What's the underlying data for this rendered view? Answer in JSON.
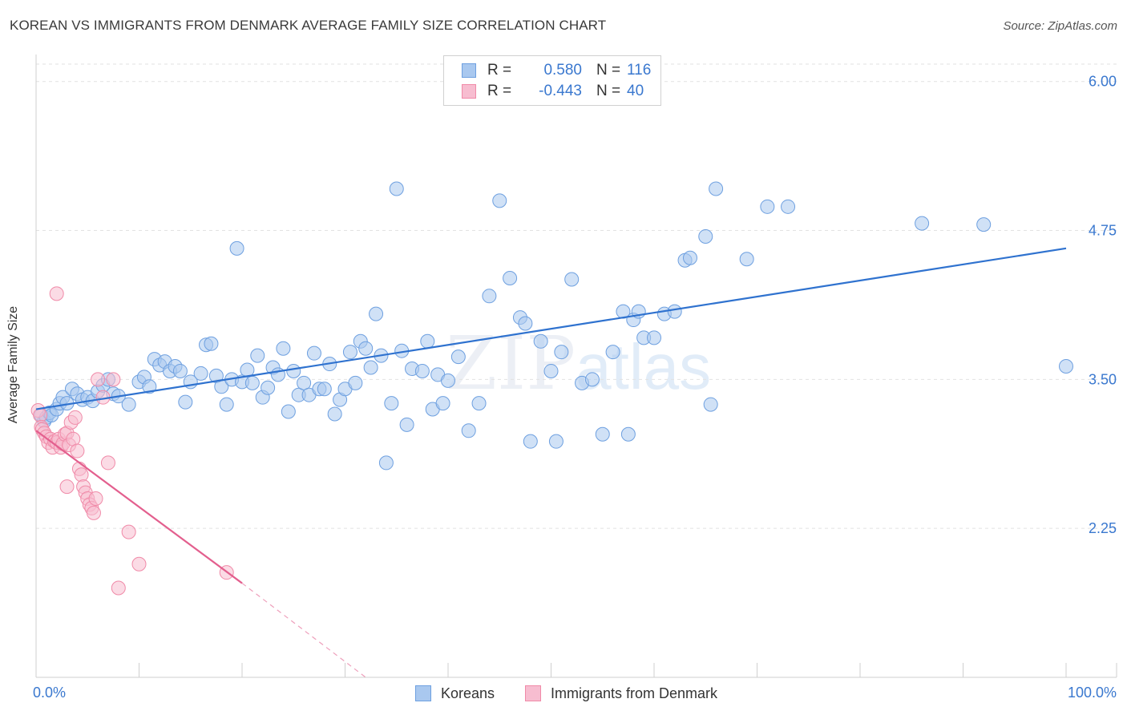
{
  "title": "KOREAN VS IMMIGRANTS FROM DENMARK AVERAGE FAMILY SIZE CORRELATION CHART",
  "source": "Source: ZipAtlas.com",
  "watermark": {
    "zip": "ZIP",
    "atlas": "atlas"
  },
  "legend": {
    "rows": [
      {
        "r_label": "R =",
        "r_value": "0.580",
        "n_label": "N =",
        "n_value": "116"
      },
      {
        "r_label": "R =",
        "r_value": "-0.443",
        "n_label": "N =",
        "n_value": "40"
      }
    ]
  },
  "chart_data": {
    "type": "scatter",
    "title": "KOREAN VS IMMIGRANTS FROM DENMARK AVERAGE FAMILY SIZE CORRELATION CHART",
    "xlabel": "",
    "ylabel": "Average Family Size",
    "xlim": [
      0,
      100
    ],
    "ylim": [
      1.0,
      6.2
    ],
    "x_tick_labels": [
      "0.0%",
      "100.0%"
    ],
    "y_ticks": [
      2.25,
      3.5,
      4.75,
      6.0
    ],
    "y_tick_labels": [
      "2.25",
      "3.50",
      "4.75",
      "6.00"
    ],
    "grid": "horizontal dashed",
    "legend_position": "top-center",
    "series": [
      {
        "name": "Koreans",
        "color": "#6ea0e0",
        "fill": "#a9c8ef",
        "trend": {
          "x": [
            0,
            100
          ],
          "y": [
            3.25,
            4.6
          ],
          "style": "solid",
          "color": "#2f72cf"
        },
        "points": [
          [
            0.5,
            3.2
          ],
          [
            0.8,
            3.15
          ],
          [
            1.0,
            3.18
          ],
          [
            1.3,
            3.22
          ],
          [
            1.5,
            3.2
          ],
          [
            2.0,
            3.25
          ],
          [
            2.3,
            3.3
          ],
          [
            2.6,
            3.35
          ],
          [
            3.0,
            3.3
          ],
          [
            3.5,
            3.42
          ],
          [
            4.0,
            3.38
          ],
          [
            4.5,
            3.33
          ],
          [
            5.0,
            3.35
          ],
          [
            5.5,
            3.32
          ],
          [
            6.0,
            3.4
          ],
          [
            6.5,
            3.45
          ],
          [
            7.0,
            3.5
          ],
          [
            7.5,
            3.38
          ],
          [
            8.0,
            3.36
          ],
          [
            9.0,
            3.29
          ],
          [
            10.0,
            3.48
          ],
          [
            10.5,
            3.52
          ],
          [
            11.0,
            3.44
          ],
          [
            11.5,
            3.67
          ],
          [
            12.0,
            3.62
          ],
          [
            12.5,
            3.65
          ],
          [
            13.0,
            3.57
          ],
          [
            13.5,
            3.61
          ],
          [
            14.0,
            3.57
          ],
          [
            14.5,
            3.31
          ],
          [
            15.0,
            3.48
          ],
          [
            16.0,
            3.55
          ],
          [
            16.5,
            3.79
          ],
          [
            17.0,
            3.8
          ],
          [
            17.5,
            3.53
          ],
          [
            18.0,
            3.44
          ],
          [
            18.5,
            3.29
          ],
          [
            19.0,
            3.5
          ],
          [
            19.5,
            4.6
          ],
          [
            20.0,
            3.48
          ],
          [
            20.5,
            3.58
          ],
          [
            21.0,
            3.47
          ],
          [
            21.5,
            3.7
          ],
          [
            22.0,
            3.35
          ],
          [
            22.5,
            3.43
          ],
          [
            23.0,
            3.6
          ],
          [
            23.5,
            3.54
          ],
          [
            24.0,
            3.76
          ],
          [
            24.5,
            3.23
          ],
          [
            25.0,
            3.57
          ],
          [
            25.5,
            3.37
          ],
          [
            26.0,
            3.47
          ],
          [
            26.5,
            3.37
          ],
          [
            27.0,
            3.72
          ],
          [
            27.5,
            3.42
          ],
          [
            28.0,
            3.42
          ],
          [
            28.5,
            3.63
          ],
          [
            29.0,
            3.21
          ],
          [
            29.5,
            3.33
          ],
          [
            30.0,
            3.42
          ],
          [
            30.5,
            3.73
          ],
          [
            31.0,
            3.47
          ],
          [
            31.5,
            3.82
          ],
          [
            32.0,
            3.76
          ],
          [
            32.5,
            3.6
          ],
          [
            33.0,
            4.05
          ],
          [
            33.5,
            3.7
          ],
          [
            34.0,
            2.8
          ],
          [
            34.5,
            3.3
          ],
          [
            35.0,
            5.1
          ],
          [
            35.5,
            3.74
          ],
          [
            36.0,
            3.12
          ],
          [
            36.5,
            3.59
          ],
          [
            37.5,
            3.57
          ],
          [
            38.0,
            3.82
          ],
          [
            38.5,
            3.25
          ],
          [
            39.0,
            3.54
          ],
          [
            39.5,
            3.3
          ],
          [
            40.0,
            3.49
          ],
          [
            41.0,
            3.69
          ],
          [
            42.0,
            3.07
          ],
          [
            43.0,
            3.3
          ],
          [
            44.0,
            4.2
          ],
          [
            45.0,
            5.0
          ],
          [
            46.0,
            4.35
          ],
          [
            47.0,
            4.02
          ],
          [
            47.5,
            3.97
          ],
          [
            48.0,
            2.98
          ],
          [
            49.0,
            3.82
          ],
          [
            50.0,
            3.57
          ],
          [
            51.0,
            3.73
          ],
          [
            52.0,
            4.34
          ],
          [
            53.0,
            3.47
          ],
          [
            54.0,
            3.5
          ],
          [
            55.0,
            3.04
          ],
          [
            56.0,
            3.73
          ],
          [
            57.0,
            4.07
          ],
          [
            58.0,
            4.0
          ],
          [
            58.5,
            4.07
          ],
          [
            59.0,
            3.85
          ],
          [
            60.0,
            3.85
          ],
          [
            61.0,
            4.05
          ],
          [
            62.0,
            4.07
          ],
          [
            63.0,
            4.5
          ],
          [
            63.5,
            4.52
          ],
          [
            65.0,
            4.7
          ],
          [
            66.0,
            5.1
          ],
          [
            69.0,
            4.51
          ],
          [
            71.0,
            4.95
          ],
          [
            73.0,
            4.95
          ],
          [
            50.5,
            2.98
          ],
          [
            57.5,
            3.04
          ],
          [
            65.5,
            3.29
          ],
          [
            86.0,
            4.81
          ],
          [
            92.0,
            4.8
          ],
          [
            100.0,
            3.61
          ]
        ]
      },
      {
        "name": "Immigrants from Denmark",
        "color": "#f08aa8",
        "fill": "#f7bdd0",
        "trend": {
          "x": [
            0,
            20
          ],
          "y": [
            3.07,
            1.79
          ],
          "extended_to": [
            32,
            1.0
          ],
          "style": "solid",
          "color": "#e35f8e"
        },
        "points": [
          [
            0.2,
            3.24
          ],
          [
            0.4,
            3.2
          ],
          [
            0.5,
            3.1
          ],
          [
            0.6,
            3.08
          ],
          [
            0.8,
            3.05
          ],
          [
            1.0,
            3.02
          ],
          [
            1.2,
            2.97
          ],
          [
            1.4,
            3.0
          ],
          [
            1.6,
            2.93
          ],
          [
            1.8,
            2.98
          ],
          [
            2.0,
            2.97
          ],
          [
            2.2,
            3.0
          ],
          [
            2.4,
            2.93
          ],
          [
            2.6,
            2.96
          ],
          [
            2.8,
            3.04
          ],
          [
            3.0,
            3.05
          ],
          [
            3.2,
            2.95
          ],
          [
            3.4,
            3.14
          ],
          [
            3.6,
            3.0
          ],
          [
            3.8,
            3.18
          ],
          [
            4.0,
            2.9
          ],
          [
            4.2,
            2.75
          ],
          [
            4.4,
            2.7
          ],
          [
            4.6,
            2.6
          ],
          [
            4.8,
            2.55
          ],
          [
            5.0,
            2.5
          ],
          [
            5.2,
            2.45
          ],
          [
            5.4,
            2.42
          ],
          [
            5.6,
            2.38
          ],
          [
            5.8,
            2.5
          ],
          [
            6.0,
            3.5
          ],
          [
            6.5,
            3.35
          ],
          [
            7.0,
            2.8
          ],
          [
            7.5,
            3.5
          ],
          [
            8.0,
            1.75
          ],
          [
            2.0,
            4.22
          ],
          [
            9.0,
            2.22
          ],
          [
            10.0,
            1.95
          ],
          [
            3.0,
            2.6
          ],
          [
            18.5,
            1.88
          ]
        ]
      }
    ]
  },
  "bottom_legend": {
    "koreans_label": "Koreans",
    "denmark_label": "Immigrants from Denmark"
  },
  "colors": {
    "blue": "#3a78cf",
    "pink": "#e35f8e"
  }
}
